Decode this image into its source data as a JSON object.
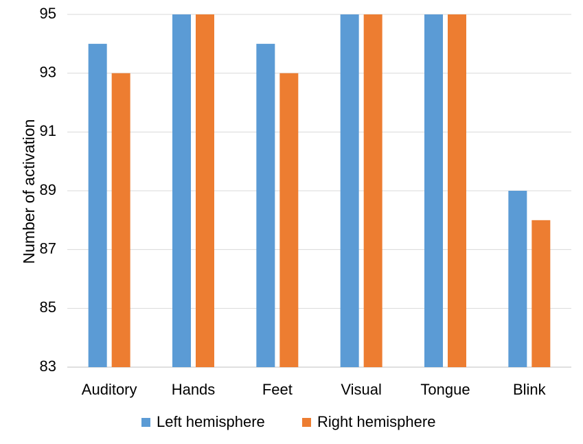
{
  "chart_data": {
    "type": "bar",
    "title": "",
    "xlabel": "",
    "ylabel": "Number of activation",
    "ylim": [
      83,
      95
    ],
    "yticks": [
      83,
      85,
      87,
      89,
      91,
      93,
      95
    ],
    "grid": true,
    "legend_position": "bottom",
    "categories": [
      "Auditory",
      "Hands",
      "Feet",
      "Visual",
      "Tongue",
      "Blink"
    ],
    "series": [
      {
        "name": "Left hemisphere",
        "color": "#5b9bd5",
        "values": [
          94,
          95,
          94,
          95,
          95,
          89
        ]
      },
      {
        "name": "Right hemisphere",
        "color": "#ed7d31",
        "values": [
          93,
          95,
          93,
          95,
          95,
          88
        ]
      }
    ]
  }
}
